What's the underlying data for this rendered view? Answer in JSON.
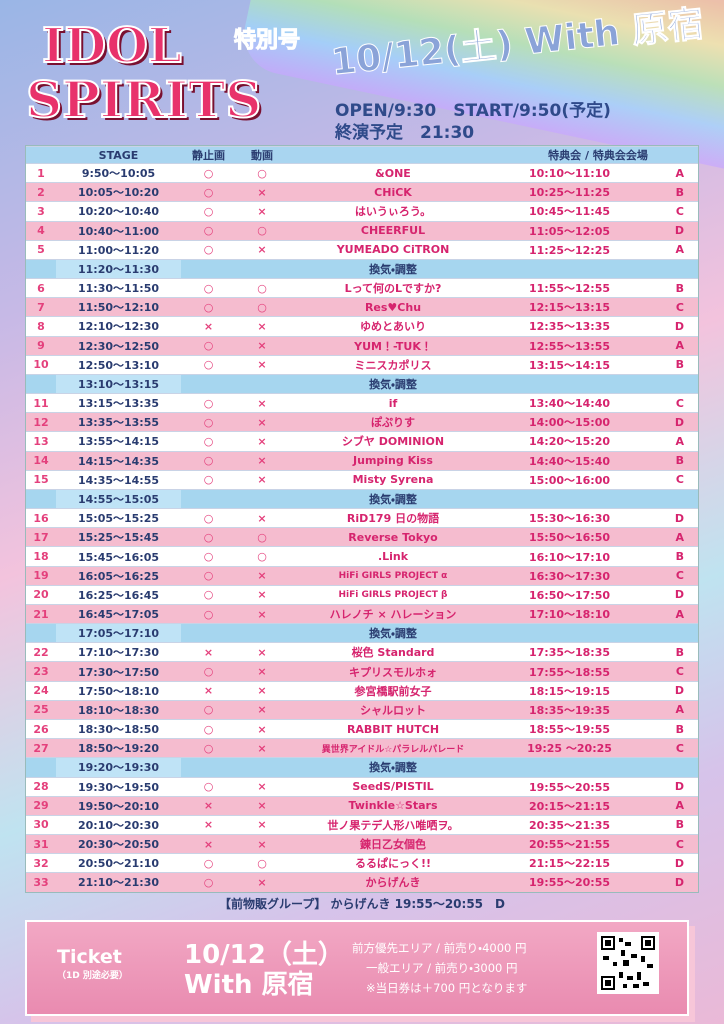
{
  "header": {
    "title_line1": "IDOL",
    "title_line2": "SPIRITS",
    "special": "特別号",
    "date": "10/12(土) With 原宿",
    "open": "OPEN/9:30　START/9:50(予定)",
    "end": "終演予定　21:30"
  },
  "table": {
    "columns": {
      "stage": "STAGE",
      "photo": "静止画",
      "video": "動画",
      "bonus": "特典会 / 特典会会場"
    },
    "rows": [
      {
        "no": "1",
        "stage": "9:50〜10:05",
        "photo": "○",
        "video": "○",
        "artist": "&ONE",
        "bonus_time": "10:10〜11:10",
        "venue": "A"
      },
      {
        "no": "2",
        "stage": "10:05〜10:20",
        "photo": "○",
        "video": "×",
        "artist": "CHiCK",
        "bonus_time": "10:25〜11:25",
        "venue": "B"
      },
      {
        "no": "3",
        "stage": "10:20〜10:40",
        "photo": "○",
        "video": "×",
        "artist": "はいうぃろう。",
        "bonus_time": "10:45〜11:45",
        "venue": "C"
      },
      {
        "no": "4",
        "stage": "10:40〜11:00",
        "photo": "○",
        "video": "○",
        "artist": "CHEERFUL",
        "bonus_time": "11:05〜12:05",
        "venue": "D"
      },
      {
        "no": "5",
        "stage": "11:00〜11:20",
        "photo": "○",
        "video": "×",
        "artist": "YUMEADO CiTRON",
        "bonus_time": "11:25〜12:25",
        "venue": "A"
      },
      {
        "stage": "11:20〜11:30",
        "note": "換気・調整"
      },
      {
        "no": "6",
        "stage": "11:30〜11:50",
        "photo": "○",
        "video": "○",
        "artist": "Lって何のLですか?",
        "bonus_time": "11:55〜12:55",
        "venue": "B"
      },
      {
        "no": "7",
        "stage": "11:50〜12:10",
        "photo": "○",
        "video": "○",
        "artist": "Res♥Chu",
        "bonus_time": "12:15〜13:15",
        "venue": "C"
      },
      {
        "no": "8",
        "stage": "12:10〜12:30",
        "photo": "×",
        "video": "×",
        "artist": "ゆめとあいり",
        "bonus_time": "12:35〜13:35",
        "venue": "D"
      },
      {
        "no": "9",
        "stage": "12:30〜12:50",
        "photo": "○",
        "video": "×",
        "artist": "YUM！-TUK！",
        "bonus_time": "12:55〜13:55",
        "venue": "A"
      },
      {
        "no": "10",
        "stage": "12:50〜13:10",
        "photo": "○",
        "video": "×",
        "artist": "ミニスカポリス",
        "bonus_time": "13:15〜14:15",
        "venue": "B"
      },
      {
        "stage": "13:10〜13:15",
        "note": "換気・調整"
      },
      {
        "no": "11",
        "stage": "13:15〜13:35",
        "photo": "○",
        "video": "×",
        "artist": "if",
        "bonus_time": "13:40〜14:40",
        "venue": "C"
      },
      {
        "no": "12",
        "stage": "13:35〜13:55",
        "photo": "○",
        "video": "×",
        "artist": "ぽぷりす",
        "bonus_time": "14:00〜15:00",
        "venue": "D"
      },
      {
        "no": "13",
        "stage": "13:55〜14:15",
        "photo": "○",
        "video": "×",
        "artist": "シブヤ DOMINION",
        "bonus_time": "14:20〜15:20",
        "venue": "A"
      },
      {
        "no": "14",
        "stage": "14:15〜14:35",
        "photo": "○",
        "video": "×",
        "artist": "Jumping Kiss",
        "bonus_time": "14:40〜15:40",
        "venue": "B"
      },
      {
        "no": "15",
        "stage": "14:35〜14:55",
        "photo": "○",
        "video": "×",
        "artist": "Misty Syrena",
        "bonus_time": "15:00〜16:00",
        "venue": "C"
      },
      {
        "stage": "14:55〜15:05",
        "note": "換気・調整"
      },
      {
        "no": "16",
        "stage": "15:05〜15:25",
        "photo": "○",
        "video": "×",
        "artist": "RiD179 日の物語",
        "bonus_time": "15:30〜16:30",
        "venue": "D"
      },
      {
        "no": "17",
        "stage": "15:25〜15:45",
        "photo": "○",
        "video": "○",
        "artist": "Reverse Tokyo",
        "bonus_time": "15:50〜16:50",
        "venue": "A"
      },
      {
        "no": "18",
        "stage": "15:45〜16:05",
        "photo": "○",
        "video": "○",
        "artist": ".Link",
        "bonus_time": "16:10〜17:10",
        "venue": "B"
      },
      {
        "no": "19",
        "stage": "16:05〜16:25",
        "photo": "○",
        "video": "×",
        "artist": "HiFi GIRLS PROJECT α",
        "bonus_time": "16:30〜17:30",
        "venue": "C"
      },
      {
        "no": "20",
        "stage": "16:25〜16:45",
        "photo": "○",
        "video": "×",
        "artist": "HiFi GIRLS PROJECT β",
        "bonus_time": "16:50〜17:50",
        "venue": "D"
      },
      {
        "no": "21",
        "stage": "16:45〜17:05",
        "photo": "○",
        "video": "×",
        "artist": "ハレノチ × ハレーション",
        "bonus_time": "17:10〜18:10",
        "venue": "A"
      },
      {
        "stage": "17:05〜17:10",
        "note": "換気・調整"
      },
      {
        "no": "22",
        "stage": "17:10〜17:30",
        "photo": "×",
        "video": "×",
        "artist": "桜色 Standard",
        "bonus_time": "17:35〜18:35",
        "venue": "B"
      },
      {
        "no": "23",
        "stage": "17:30〜17:50",
        "photo": "○",
        "video": "×",
        "artist": "キプリスモルホォ",
        "bonus_time": "17:55〜18:55",
        "venue": "C"
      },
      {
        "no": "24",
        "stage": "17:50〜18:10",
        "photo": "×",
        "video": "×",
        "artist": "参宮橋駅前女子",
        "bonus_time": "18:15〜19:15",
        "venue": "D"
      },
      {
        "no": "25",
        "stage": "18:10〜18:30",
        "photo": "○",
        "video": "×",
        "artist": "シャルロット",
        "bonus_time": "18:35〜19:35",
        "venue": "A"
      },
      {
        "no": "26",
        "stage": "18:30〜18:50",
        "photo": "○",
        "video": "×",
        "artist": "RABBIT HUTCH",
        "bonus_time": "18:55〜19:55",
        "venue": "B"
      },
      {
        "no": "27",
        "stage": "18:50〜19:20",
        "photo": "○",
        "video": "×",
        "artist": "異世界アイドル☆パラレルパレード",
        "bonus_time": "19:25 〜20:25",
        "venue": "C"
      },
      {
        "stage": "19:20〜19:30",
        "note": "換気・調整"
      },
      {
        "no": "28",
        "stage": "19:30〜19:50",
        "photo": "○",
        "video": "×",
        "artist": "SeedS/PISTIL",
        "bonus_time": "19:55〜20:55",
        "venue": "D"
      },
      {
        "no": "29",
        "stage": "19:50〜20:10",
        "photo": "×",
        "video": "×",
        "artist": "Twinkle☆Stars",
        "bonus_time": "20:15〜21:15",
        "venue": "A"
      },
      {
        "no": "30",
        "stage": "20:10〜20:30",
        "photo": "×",
        "video": "×",
        "artist": "世ノ果テデ人形ハ唯哂ヲ。",
        "bonus_time": "20:35〜21:35",
        "venue": "B"
      },
      {
        "no": "31",
        "stage": "20:30〜20:50",
        "photo": "×",
        "video": "×",
        "artist": "錬日乙女個色",
        "bonus_time": "20:55〜21:55",
        "venue": "C"
      },
      {
        "no": "32",
        "stage": "20:50〜21:10",
        "photo": "○",
        "video": "○",
        "artist": "るるぱにっく!!",
        "bonus_time": "21:15〜22:15",
        "venue": "D"
      },
      {
        "no": "33",
        "stage": "21:10〜21:30",
        "photo": "○",
        "video": "×",
        "artist": "からげんき",
        "bonus_time": "19:55〜20:55",
        "venue": "D"
      }
    ]
  },
  "pre_sale": "【前物販グループ】 からげんき 19:55〜20:55　D",
  "ticket": {
    "label": "Ticket",
    "note": "（1D 別途必要）",
    "date": "10/12（土）",
    "venue": "With 原宿",
    "prices": [
      "前方優先エリア / 前売り・4000 円",
      "一般エリア / 前売り・3000 円",
      "※当日券は＋700 円となります"
    ]
  }
}
